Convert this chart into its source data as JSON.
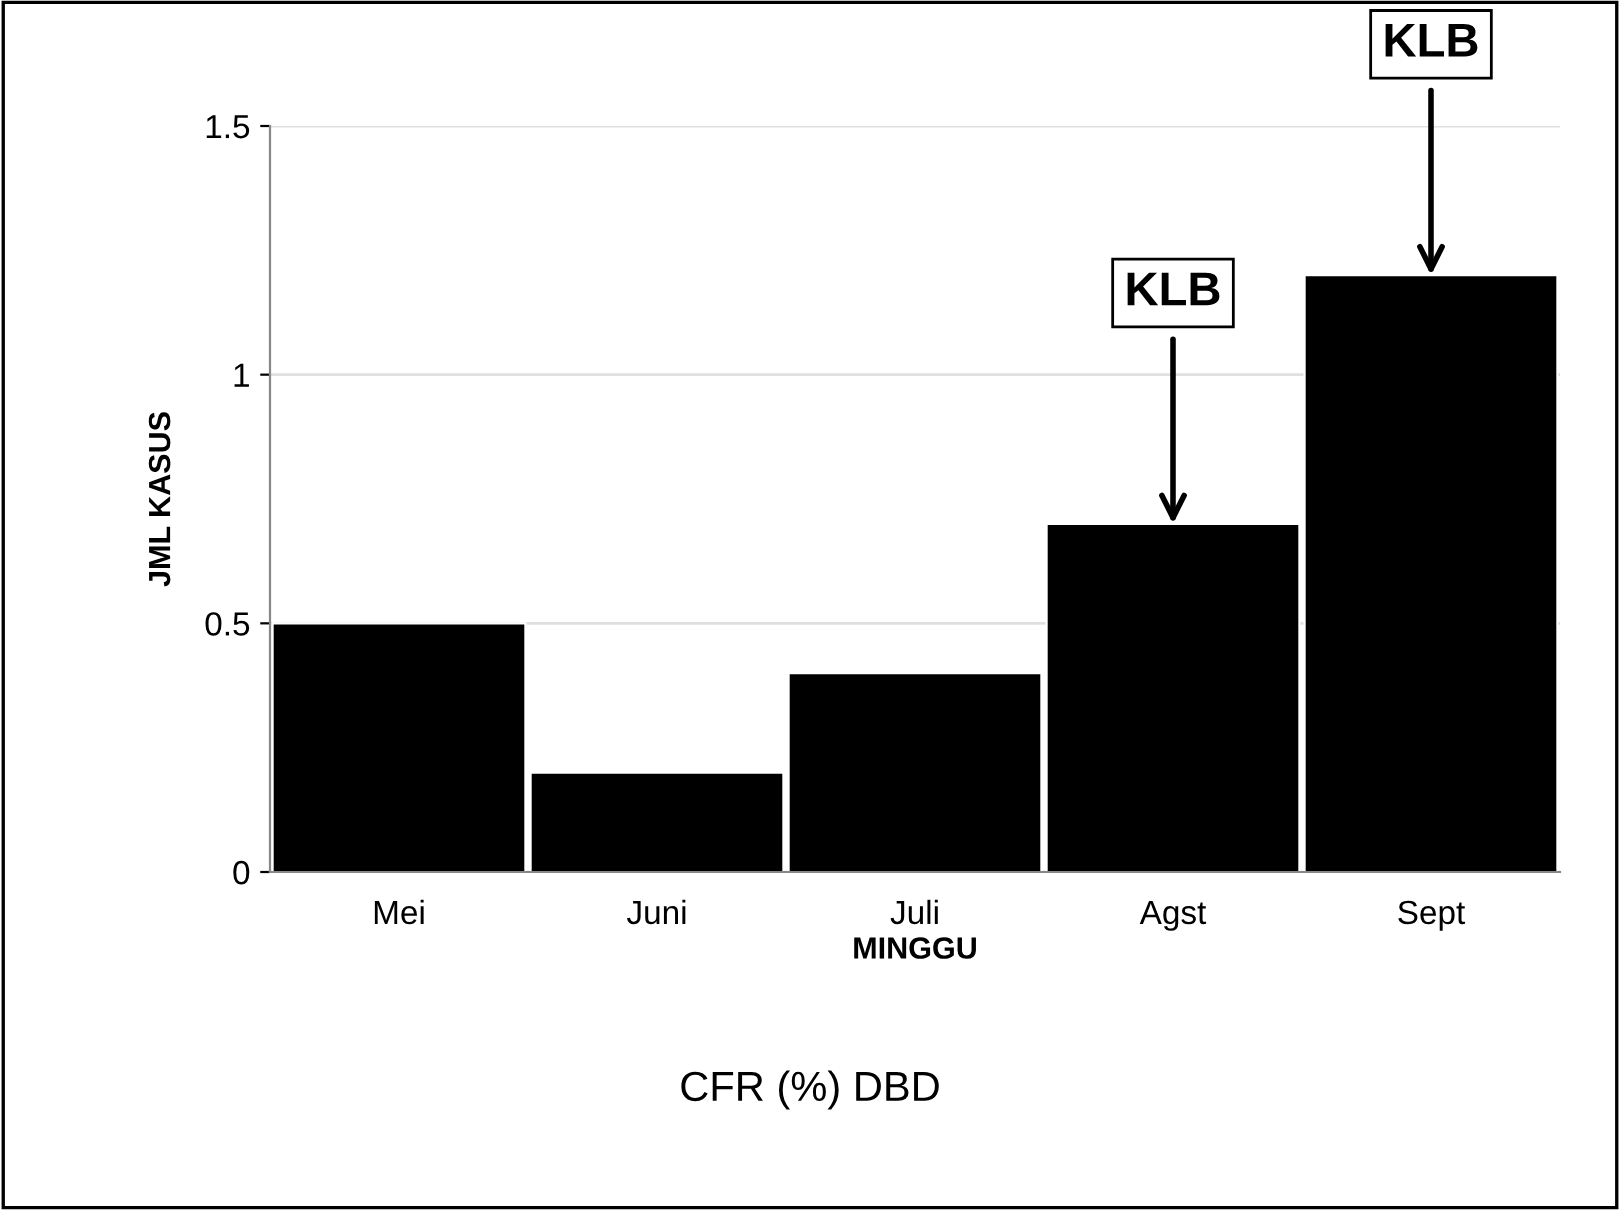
{
  "chart_data": {
    "type": "bar",
    "title": "CFR (%) DBD",
    "xlabel": "MINGGU",
    "ylabel": "JML KASUS",
    "categories": [
      "Mei",
      "Juni",
      "Juli",
      "Agst",
      "Sept"
    ],
    "values": [
      0.5,
      0.2,
      0.4,
      0.7,
      1.2
    ],
    "color": "#000000",
    "ylim": [
      0,
      1.5
    ],
    "yticks": [
      0,
      0.5,
      1,
      1.5
    ],
    "grid": "y",
    "annotations": [
      {
        "text": "KLB",
        "x": "Agst",
        "y": 0.7
      },
      {
        "text": "KLB",
        "x": "Sept",
        "y": 1.2
      }
    ]
  }
}
